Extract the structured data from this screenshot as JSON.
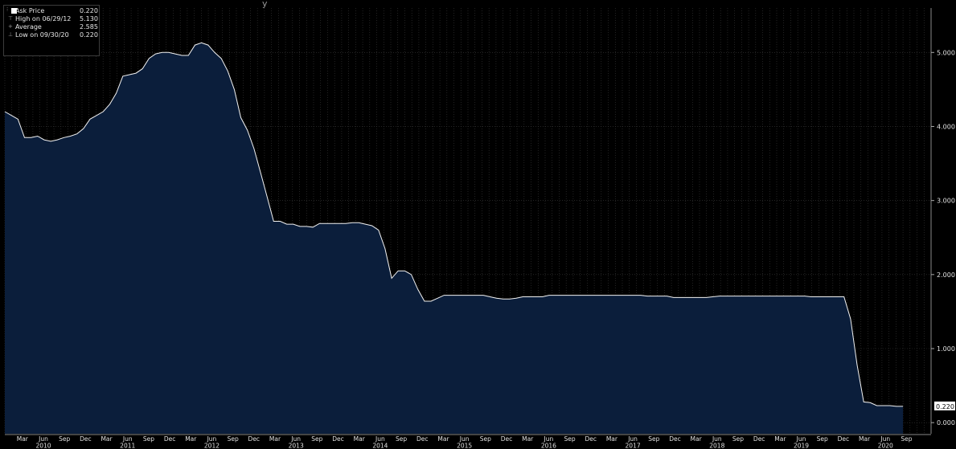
{
  "header": {
    "partial_text": "y"
  },
  "legend": {
    "items": [
      {
        "label": "Ask Price",
        "value": "0.220",
        "icon": "white-square-icon"
      },
      {
        "label": "High on 06/29/12",
        "value": "5.130",
        "icon": "high-marker-icon"
      },
      {
        "label": "Average",
        "value": "2.585",
        "icon": "average-marker-icon"
      },
      {
        "label": "Low on 09/30/20",
        "value": "0.220",
        "icon": "low-marker-icon"
      }
    ]
  },
  "colors": {
    "background": "#000000",
    "area_fill": "#0b1e3b",
    "line": "#f2f2f2",
    "grid": "#3a3a3a",
    "axis_text": "#e0e0e0"
  },
  "chart_data": {
    "type": "area",
    "series": [
      {
        "name": "Ask Price",
        "values": [
          4.2,
          4.15,
          4.1,
          3.85,
          3.85,
          3.87,
          3.82,
          3.8,
          3.82,
          3.85,
          3.87,
          3.9,
          3.97,
          4.1,
          4.15,
          4.2,
          4.3,
          4.45,
          4.68,
          4.7,
          4.72,
          4.78,
          4.92,
          4.98,
          5.0,
          5.0,
          4.98,
          4.96,
          4.96,
          5.1,
          5.13,
          5.1,
          5.0,
          4.92,
          4.75,
          4.5,
          4.12,
          3.95,
          3.7,
          3.38,
          3.05,
          2.72,
          2.72,
          2.68,
          2.68,
          2.65,
          2.65,
          2.64,
          2.69,
          2.69,
          2.69,
          2.69,
          2.69,
          2.7,
          2.7,
          2.68,
          2.66,
          2.6,
          2.35,
          1.95,
          2.05,
          2.05,
          2.0,
          1.8,
          1.64,
          1.64,
          1.68,
          1.72,
          1.72,
          1.72,
          1.72,
          1.72,
          1.72,
          1.72,
          1.7,
          1.68,
          1.67,
          1.67,
          1.68,
          1.7,
          1.7,
          1.7,
          1.7,
          1.72,
          1.72,
          1.72,
          1.72,
          1.72,
          1.72,
          1.72,
          1.72,
          1.72,
          1.72,
          1.72,
          1.72,
          1.72,
          1.72,
          1.72,
          1.71,
          1.71,
          1.71,
          1.71,
          1.69,
          1.69,
          1.69,
          1.69,
          1.69,
          1.69,
          1.7,
          1.71,
          1.71,
          1.71,
          1.71,
          1.71,
          1.71,
          1.71,
          1.71,
          1.71,
          1.71,
          1.71,
          1.71,
          1.71,
          1.71,
          1.7,
          1.7,
          1.7,
          1.7,
          1.7,
          1.7,
          1.4,
          0.78,
          0.28,
          0.27,
          0.23,
          0.23,
          0.23,
          0.22,
          0.22
        ]
      }
    ],
    "x_range": [
      "2010-01",
      "2020-09"
    ],
    "x_month_ticks": [
      "Mar",
      "Jun",
      "Sep",
      "Dec",
      "Mar",
      "Jun",
      "Sep",
      "Dec",
      "Mar",
      "Jun",
      "Sep",
      "Dec",
      "Mar",
      "Jun",
      "Sep",
      "Dec",
      "Mar",
      "Jun",
      "Sep",
      "Dec",
      "Mar",
      "Jun",
      "Sep",
      "Dec",
      "Mar",
      "Jun",
      "Sep",
      "Dec",
      "Mar",
      "Jun",
      "Sep",
      "Dec",
      "Mar",
      "Jun",
      "Sep",
      "Dec",
      "Mar",
      "Jun",
      "Sep",
      "Dec",
      "Mar",
      "Jun",
      "Sep"
    ],
    "x_year_ticks": [
      "2010",
      "2011",
      "2012",
      "2013",
      "2014",
      "2015",
      "2016",
      "2017",
      "2018",
      "2019",
      "2020"
    ],
    "y_ticks": [
      "0.000",
      "1.000",
      "2.000",
      "3.000",
      "4.000",
      "5.000"
    ],
    "ylim": [
      -0.15,
      5.6
    ],
    "last_value_label": "0.220",
    "grid": true,
    "legend_position": "top-left"
  }
}
